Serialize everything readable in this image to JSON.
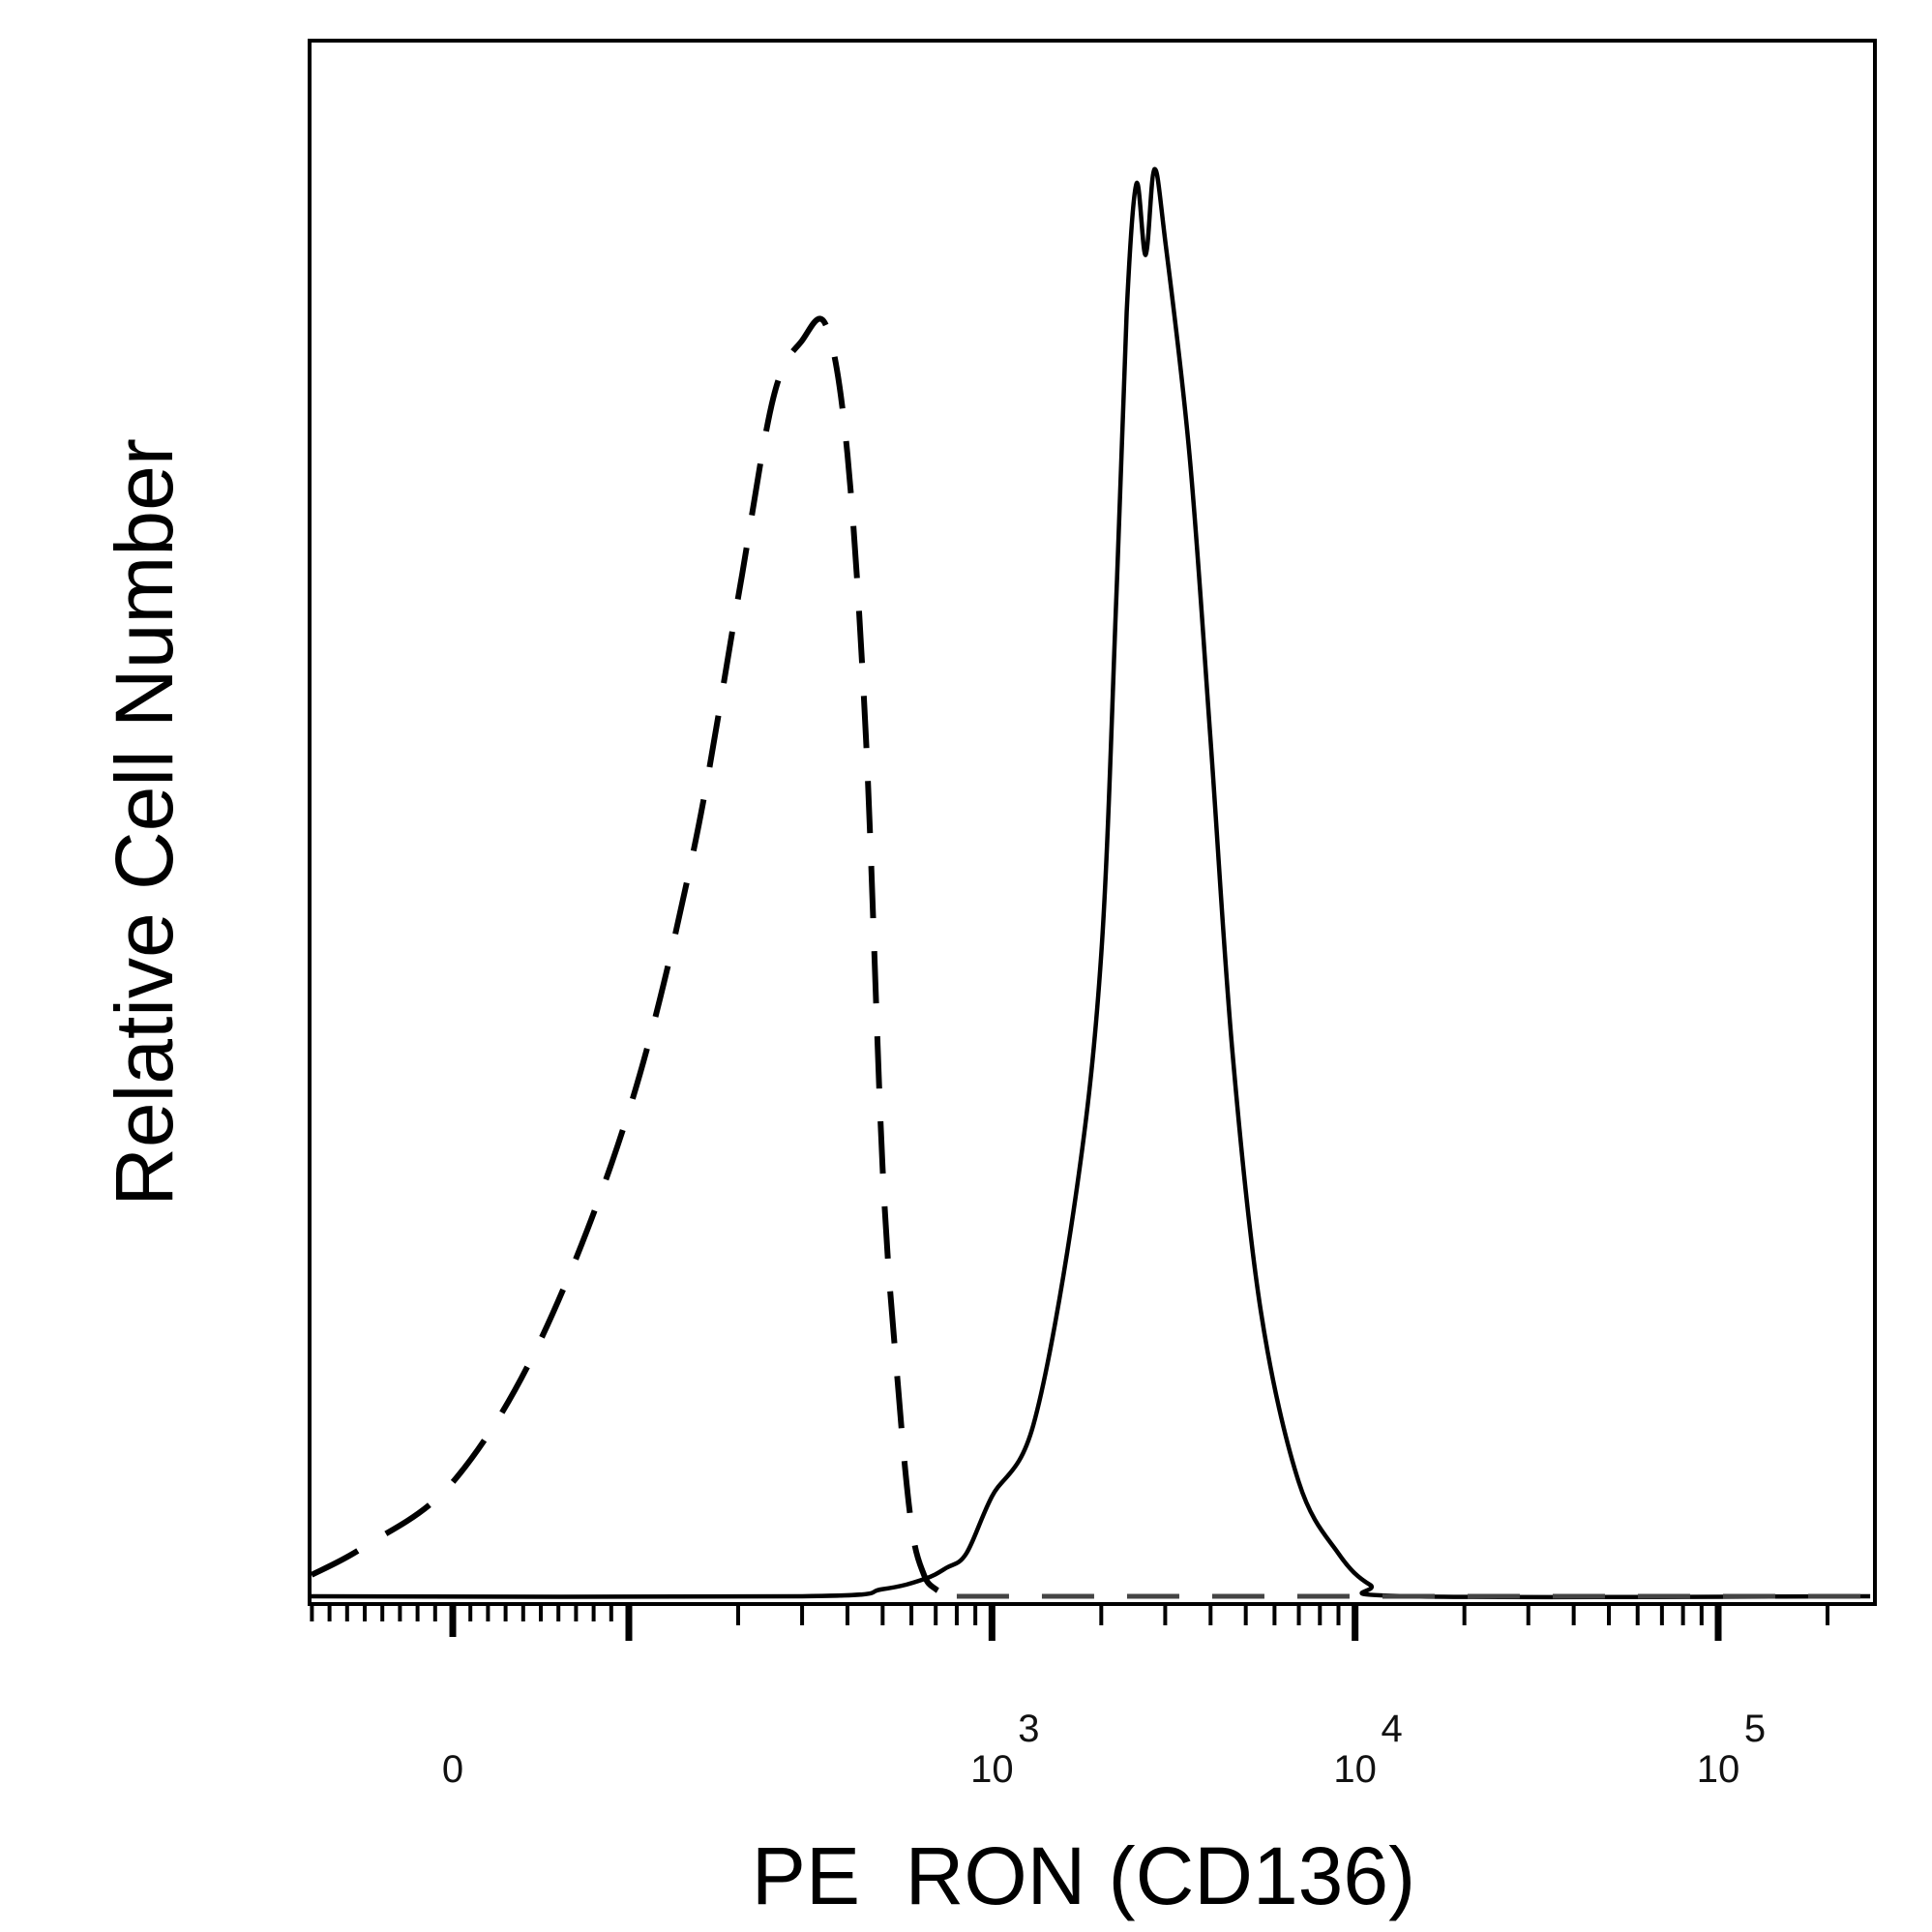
{
  "chart_data": {
    "type": "line",
    "title": "",
    "xlabel": "PE  RON (CD136)",
    "ylabel": "Relative Cell Number",
    "x_scale": "biexponential",
    "x_tick_labels": [
      {
        "base": "0",
        "exp": "",
        "value": 0
      },
      {
        "base": "10",
        "exp": "3",
        "value": 1000
      },
      {
        "base": "10",
        "exp": "4",
        "value": 10000
      },
      {
        "base": "10",
        "exp": "5",
        "value": 100000
      }
    ],
    "xlim": [
      -200,
      262144
    ],
    "ylim": [
      0,
      100
    ],
    "grid": false,
    "legend": "none",
    "series": [
      {
        "style": "dashed",
        "color": "#000000",
        "x": [
          -150,
          -50,
          0,
          50,
          100,
          150,
          200,
          250,
          300,
          350,
          400,
          450,
          500,
          550,
          600,
          650,
          700,
          750,
          800
        ],
        "y": [
          1.5,
          3.5,
          8,
          18,
          34,
          52,
          70,
          84,
          88,
          89,
          80,
          60,
          30,
          15,
          5,
          1.5,
          0.5,
          0.2,
          0
        ]
      },
      {
        "style": "solid",
        "color": "#000000",
        "x": [
          -200,
          300,
          500,
          650,
          750,
          850,
          1000,
          1300,
          1700,
          2000,
          2200,
          2350,
          2500,
          2650,
          2800,
          3000,
          3500,
          4000,
          4600,
          5500,
          7000,
          9000,
          11000,
          14000,
          262144
        ],
        "y": [
          0,
          0,
          0.5,
          1.2,
          2,
          3,
          7,
          12,
          28,
          45,
          70,
          90,
          99,
          94,
          100,
          95,
          80,
          60,
          38,
          20,
          8,
          3,
          0.8,
          0,
          0
        ]
      }
    ]
  }
}
